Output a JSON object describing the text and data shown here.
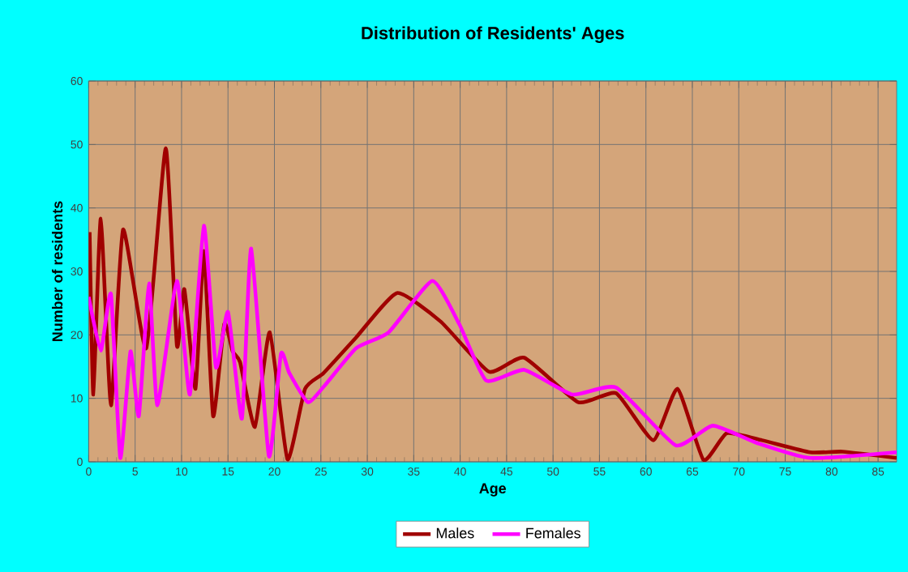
{
  "chart_data": {
    "type": "line",
    "title": "Distribution of Residents' Ages",
    "xlabel": "Age",
    "ylabel": "Number of residents",
    "xlim": [
      0,
      87
    ],
    "ylim": [
      0,
      60
    ],
    "xticks": [
      0,
      5,
      10,
      15,
      20,
      25,
      30,
      35,
      40,
      45,
      50,
      55,
      60,
      65,
      70,
      75,
      80,
      85
    ],
    "yticks": [
      0,
      10,
      20,
      30,
      40,
      50,
      60
    ],
    "grid": true,
    "legend": "bottom",
    "line_style": "solid",
    "series": [
      {
        "name": "Males",
        "color": "#a00000",
        "x": [
          0.1,
          0.5,
          1.3,
          2.4,
          3.7,
          6.2,
          8.3,
          9.5,
          10.3,
          11.5,
          12.4,
          13.4,
          14.6,
          15.5,
          16.3,
          17.9,
          19.5,
          21.4,
          23.3,
          25.3,
          28.8,
          33.2,
          37.9,
          43.1,
          46.9,
          52.7,
          56.8,
          60.8,
          63.4,
          66.2,
          68.7,
          72.5,
          77.7,
          81.2,
          87
        ],
        "values": [
          36.2,
          10.6,
          38.3,
          8.9,
          36.6,
          17.9,
          49.4,
          18.3,
          27.2,
          11.5,
          33.2,
          7.2,
          21.7,
          17.4,
          15.7,
          5.5,
          20.4,
          0.4,
          11.5,
          14,
          19.6,
          26.6,
          22.1,
          14.2,
          16.4,
          9.4,
          10.8,
          3.4,
          11.5,
          0.3,
          4.5,
          3.4,
          1.5,
          1.6,
          0.6
        ]
      },
      {
        "name": "Females",
        "color": "#ff00ff",
        "x": [
          0,
          1.3,
          2.4,
          3.4,
          4.5,
          5.4,
          6.5,
          7.4,
          9.5,
          10.9,
          12.4,
          13.7,
          15,
          16.5,
          17.5,
          19.4,
          20.7,
          21.6,
          23.6,
          25.4,
          28.8,
          32.3,
          37,
          39.9,
          42.8,
          46.9,
          52.1,
          56.8,
          63.2,
          67.2,
          71.9,
          77.7,
          87
        ],
        "values": [
          26,
          17.5,
          26.4,
          0.6,
          17.4,
          7.2,
          28.1,
          8.9,
          28.5,
          10.6,
          37.2,
          14.9,
          23.6,
          6.8,
          33.6,
          0.9,
          17,
          14,
          9.4,
          12,
          17.9,
          20.4,
          28.5,
          21.7,
          12.8,
          14.5,
          10.6,
          11.7,
          2.6,
          5.7,
          3.0,
          0.6,
          1.5
        ]
      }
    ]
  }
}
